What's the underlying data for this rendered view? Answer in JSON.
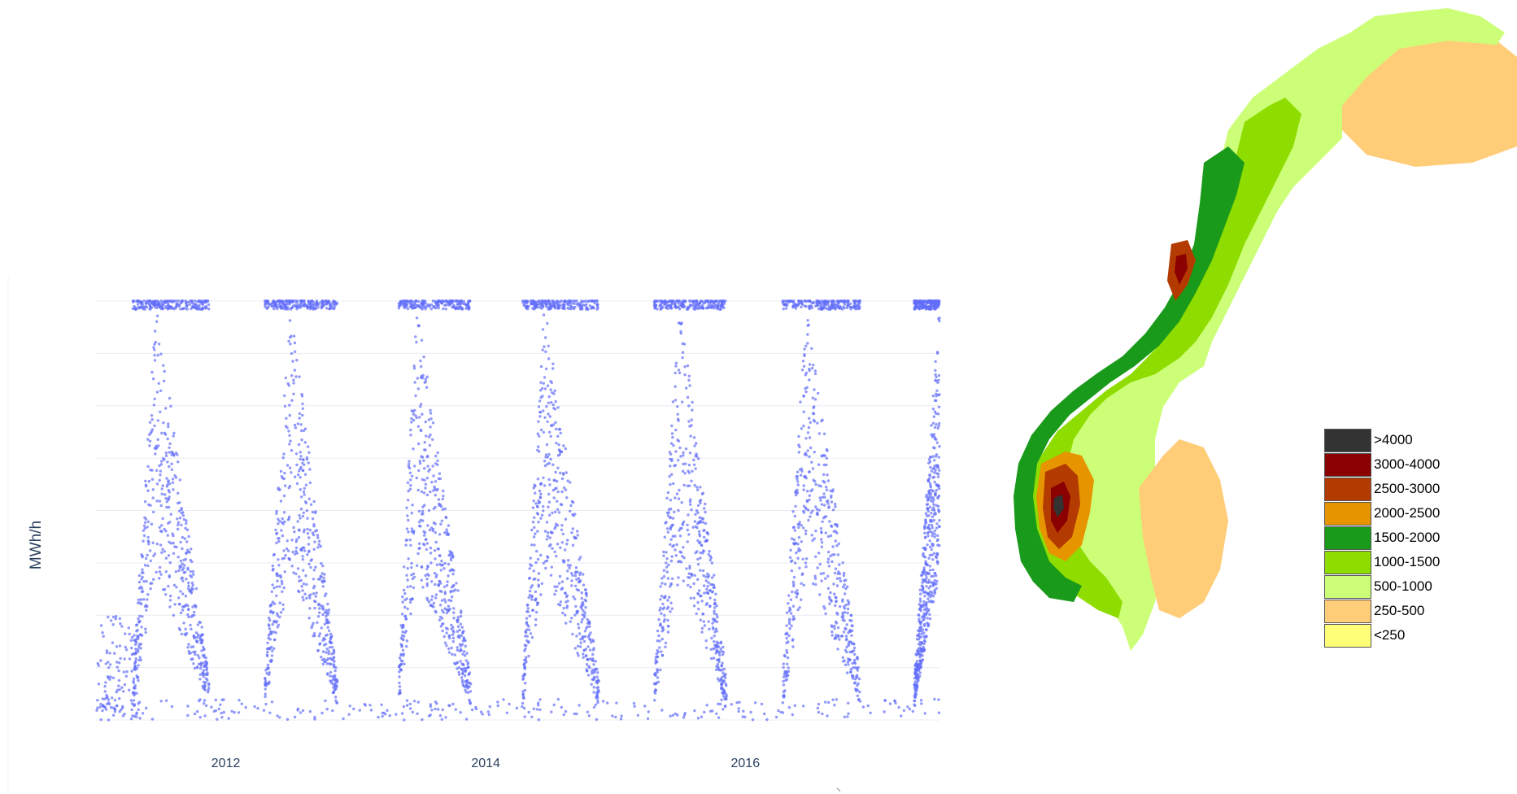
{
  "chart_data": [
    {
      "type": "scatter",
      "title": "",
      "ylabel": "MWh/h",
      "xlabel": "",
      "x_ticks": [
        "2012",
        "2014",
        "2016"
      ],
      "x_range": [
        "2011-01-01",
        "2017-06-30"
      ],
      "y_range_relative": [
        0,
        1
      ],
      "grid": true,
      "color": "#636efa",
      "series": [
        {
          "values_description_free": true,
          "seasonal_peaks": [
            {
              "start": "2011-04-15",
              "end": "2011-11-15",
              "peak": "2011-06-20"
            },
            {
              "start": "2012-04-20",
              "end": "2012-11-10",
              "peak": "2012-07-01"
            },
            {
              "start": "2013-05-01",
              "end": "2013-11-20",
              "peak": "2013-06-20"
            },
            {
              "start": "2014-04-15",
              "end": "2014-11-15",
              "peak": "2014-06-15"
            },
            {
              "start": "2015-04-20",
              "end": "2015-11-10",
              "peak": "2015-07-01"
            },
            {
              "start": "2016-04-15",
              "end": "2016-11-20",
              "peak": "2016-06-20"
            },
            {
              "start": "2017-04-20",
              "end": "2017-06-30",
              "peak": "2017-06-30"
            }
          ]
        }
      ]
    },
    {
      "type": "heatmap",
      "title": "",
      "legend": {
        "placement": "right",
        "items": [
          {
            "label": ">4000",
            "color": "#333333"
          },
          {
            "label": "3000-4000",
            "color": "#8b0000"
          },
          {
            "label": "2500-3000",
            "color": "#b33a00"
          },
          {
            "label": "2000-2500",
            "color": "#e69500"
          },
          {
            "label": "1500-2000",
            "color": "#1a9a1a"
          },
          {
            "label": "1000-1500",
            "color": "#8fdc00"
          },
          {
            "label": "500-1000",
            "color": "#ccff77"
          },
          {
            "label": "250-500",
            "color": "#ffcc77"
          },
          {
            "label": "<250",
            "color": "#ffff77"
          }
        ]
      }
    }
  ]
}
